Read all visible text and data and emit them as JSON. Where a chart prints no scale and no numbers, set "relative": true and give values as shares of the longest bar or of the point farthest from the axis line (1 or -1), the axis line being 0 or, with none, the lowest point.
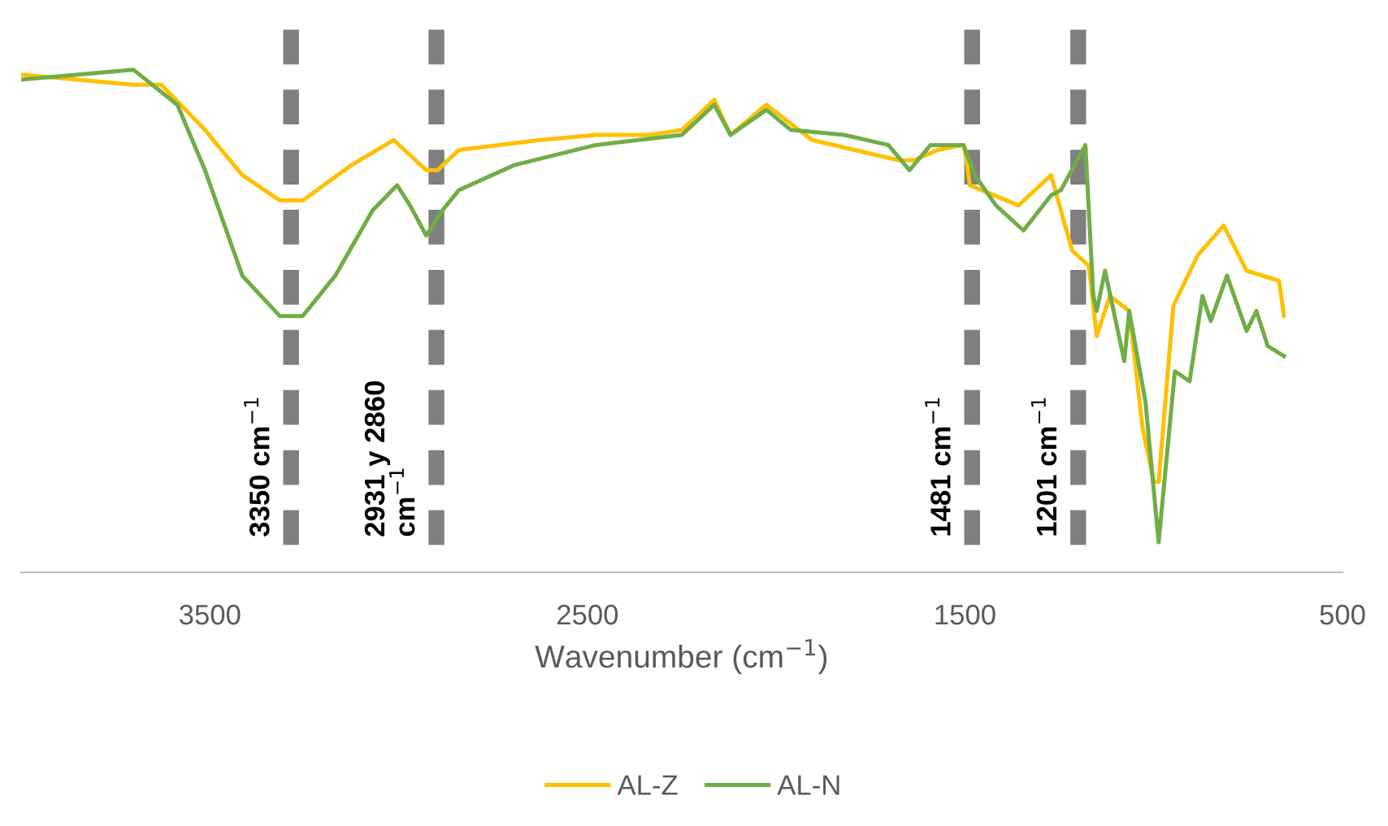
{
  "chart_data": {
    "type": "line",
    "relative": true,
    "xlabel": "Wavenumber (cm$^{−1}$)",
    "xlim": [
      4000,
      500
    ],
    "xticks": [
      3500,
      2500,
      1500,
      500
    ],
    "grid": false,
    "legend": "bottom",
    "marker": "none",
    "line_style": "solid",
    "series": [
      {
        "name": "AL-Z",
        "color": "#ffc000",
        "x": [
          4000,
          3703,
          3629,
          3513,
          3414,
          3315,
          3254,
          3125,
          3013,
          2927,
          2897,
          2841,
          2625,
          2478,
          2336,
          2250,
          2220,
          2164,
          2121,
          2026,
          1905,
          1677,
          1634,
          1573,
          1504,
          1496,
          1487,
          1358,
          1272,
          1216,
          1172,
          1151,
          1116,
          1065,
          1030,
          1000,
          987,
          948,
          884,
          815,
          754,
          668,
          655
        ],
        "values": [
          0.99,
          0.97,
          0.97,
          0.88,
          0.79,
          0.74,
          0.74,
          0.81,
          0.86,
          0.8,
          0.8,
          0.84,
          0.86,
          0.87,
          0.87,
          0.88,
          0.9,
          0.94,
          0.87,
          0.93,
          0.86,
          0.82,
          0.82,
          0.84,
          0.85,
          0.82,
          0.77,
          0.73,
          0.79,
          0.64,
          0.61,
          0.47,
          0.55,
          0.52,
          0.29,
          0.18,
          0.18,
          0.53,
          0.63,
          0.69,
          0.6,
          0.58,
          0.51
        ]
      },
      {
        "name": "AL-N",
        "color": "#70ad47",
        "x": [
          4000,
          3703,
          3586,
          3513,
          3414,
          3315,
          3254,
          3168,
          3069,
          3004,
          2970,
          2927,
          2884,
          2841,
          2694,
          2478,
          2250,
          2164,
          2121,
          2026,
          1961,
          1819,
          1703,
          1647,
          1591,
          1504,
          1474,
          1418,
          1345,
          1272,
          1246,
          1181,
          1160,
          1151,
          1129,
          1078,
          1065,
          1022,
          987,
          944,
          905,
          871,
          849,
          806,
          754,
          728,
          698,
          655
        ],
        "values": [
          0.98,
          1.0,
          0.93,
          0.8,
          0.59,
          0.51,
          0.51,
          0.59,
          0.72,
          0.77,
          0.73,
          0.67,
          0.72,
          0.76,
          0.81,
          0.85,
          0.87,
          0.93,
          0.87,
          0.92,
          0.88,
          0.87,
          0.85,
          0.8,
          0.85,
          0.85,
          0.79,
          0.73,
          0.68,
          0.75,
          0.76,
          0.85,
          0.55,
          0.52,
          0.6,
          0.42,
          0.52,
          0.34,
          0.06,
          0.4,
          0.38,
          0.55,
          0.5,
          0.59,
          0.48,
          0.52,
          0.45,
          0.43
        ]
      }
    ],
    "ref_lines": [
      {
        "axis": "x",
        "value": 3285,
        "label": "3350 cm$^{−1}$",
        "color": "#7f7f7f",
        "line_style": "dashed"
      },
      {
        "axis": "x",
        "value": 2900,
        "label": "2931 y 2860\ncm$^{−1}$",
        "color": "#7f7f7f",
        "line_style": "dashed"
      },
      {
        "axis": "x",
        "value": 1481,
        "label": "1481 cm$^{−1}$",
        "color": "#7f7f7f",
        "line_style": "dashed"
      },
      {
        "axis": "x",
        "value": 1200,
        "label": "1201 cm$^{−1}$",
        "color": "#7f7f7f",
        "line_style": "dashed"
      }
    ]
  }
}
